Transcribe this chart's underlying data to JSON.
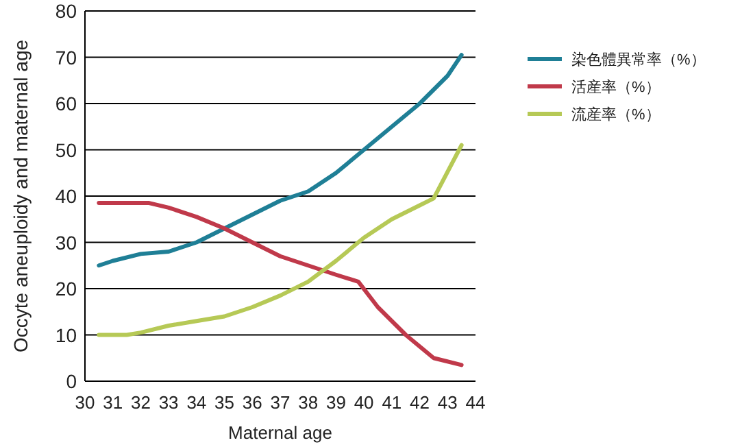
{
  "chart_data": {
    "type": "line",
    "xlabel": "Maternal age",
    "ylabel": "Occyte aneuploidy and maternal age",
    "xlim": [
      30,
      44
    ],
    "xticks": [
      30,
      31,
      32,
      33,
      34,
      35,
      36,
      37,
      38,
      39,
      40,
      41,
      42,
      43,
      44
    ],
    "ylim": [
      0,
      80
    ],
    "yticks": [
      0,
      10,
      20,
      30,
      40,
      50,
      60,
      70,
      80
    ],
    "grid": "y",
    "legend": "right",
    "series": [
      {
        "name": "染色體異常率（%）",
        "color": "#1f7f96",
        "x": [
          30.5,
          31,
          32,
          33,
          34,
          35,
          36,
          37,
          38,
          39,
          40,
          41,
          42,
          43,
          43.5
        ],
        "values": [
          25,
          26,
          27.5,
          28,
          30,
          33,
          36,
          39,
          41,
          45,
          50,
          55,
          60,
          66,
          70.5
        ]
      },
      {
        "name": "活産率（%）",
        "color": "#c0394a",
        "x": [
          30.5,
          31.5,
          32.3,
          33,
          34,
          35,
          36,
          37,
          38,
          39,
          39.8,
          40.5,
          41.5,
          42.5,
          43.5
        ],
        "values": [
          38.5,
          38.5,
          38.5,
          37.5,
          35.5,
          33,
          30,
          27,
          25,
          23,
          21.5,
          16,
          10,
          5,
          3.5
        ]
      },
      {
        "name": "流産率（%）",
        "color": "#b6c956",
        "x": [
          30.5,
          31.5,
          32,
          33,
          34,
          35,
          36,
          37,
          38,
          39,
          40,
          41,
          42,
          42.5,
          43.5
        ],
        "values": [
          10,
          10,
          10.5,
          12,
          13,
          14,
          16,
          18.5,
          21.5,
          26,
          31,
          35,
          38,
          39.5,
          51
        ]
      }
    ]
  }
}
